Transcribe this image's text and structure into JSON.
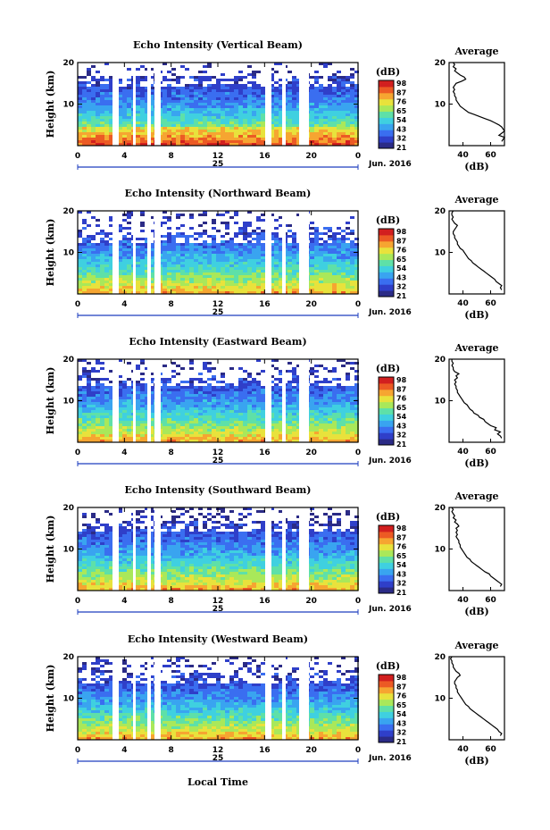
{
  "colors": {
    "colormap": [
      "#2b2b86",
      "#2f3fc9",
      "#3a6ef0",
      "#39a4f0",
      "#3fd0e0",
      "#5ee0a8",
      "#a9e85a",
      "#e8e23c",
      "#f6a531",
      "#ec5a24",
      "#d21f1f"
    ],
    "profile_line": "#000000",
    "background": "#ffffff"
  },
  "common": {
    "height_label": "Height (km)",
    "height_ticks": [
      "10",
      "20"
    ],
    "time_ticks": [
      "0",
      "4",
      "8",
      "12",
      "16",
      "20",
      "0"
    ],
    "day_label": "25",
    "month_label": "Jun. 2016",
    "colorbar_unit": "(dB)",
    "colorbar_ticks": [
      "98",
      "87",
      "76",
      "65",
      "54",
      "43",
      "32",
      "21"
    ],
    "average_title": "Average",
    "average_xlabel": "(dB)",
    "average_xticks": [
      "40",
      "60"
    ],
    "average_yticks": [
      "10",
      "20"
    ],
    "local_time_label": "Local Time"
  },
  "chart_data": [
    {
      "type": "heatmap",
      "title": "Echo Intensity (Vertical Beam)",
      "xlabel": "",
      "ylabel": "Height (km)",
      "xlim": [
        0,
        24
      ],
      "ylim": [
        0,
        20
      ],
      "zlim": [
        21,
        98
      ],
      "zunit": "dB",
      "missing_time_intervals": [
        [
          3.2,
          3.8
        ],
        [
          5.2,
          5.5
        ],
        [
          6.1,
          6.4
        ],
        [
          6.8,
          7.2
        ],
        [
          16.0,
          16.4
        ],
        [
          17.8,
          18.4
        ],
        [
          19.8,
          20.5
        ]
      ],
      "average_profile": {
        "xlim": [
          30,
          70
        ],
        "height": [
          1,
          1.5,
          2,
          2.5,
          3,
          3.5,
          4,
          4.5,
          5,
          5.5,
          6,
          6.5,
          7,
          7.5,
          8,
          8.5,
          9,
          9.5,
          10,
          10.5,
          11,
          11.5,
          12,
          12.5,
          13,
          13.5,
          14,
          14.5,
          15,
          15.5,
          16,
          16.5,
          17,
          17.5,
          18,
          18.5,
          19,
          19.5,
          20
        ],
        "dB": [
          68,
          69,
          70,
          66,
          68,
          70,
          69,
          68,
          66,
          63,
          60,
          56,
          52,
          48,
          44,
          42,
          40,
          38,
          37,
          36,
          35,
          35,
          34,
          34,
          33,
          34,
          33,
          34,
          35,
          39,
          42,
          41,
          38,
          36,
          34,
          35,
          33,
          34,
          33
        ]
      }
    },
    {
      "type": "heatmap",
      "title": "Echo Intensity (Northward Beam)",
      "xlabel": "",
      "ylabel": "Height (km)",
      "xlim": [
        0,
        24
      ],
      "ylim": [
        0,
        20
      ],
      "zlim": [
        21,
        98
      ],
      "zunit": "dB",
      "missing_time_intervals": [
        [
          3.2,
          3.8
        ],
        [
          5.2,
          5.5
        ],
        [
          6.1,
          6.4
        ],
        [
          6.8,
          7.2
        ],
        [
          16.0,
          16.4
        ],
        [
          17.8,
          18.4
        ],
        [
          19.8,
          20.5
        ]
      ],
      "average_profile": {
        "xlim": [
          30,
          70
        ],
        "height": [
          1,
          1.5,
          2,
          2.5,
          3,
          3.5,
          4,
          4.5,
          5,
          5.5,
          6,
          6.5,
          7,
          7.5,
          8,
          8.5,
          9,
          9.5,
          10,
          10.5,
          11,
          11.5,
          12,
          12.5,
          13,
          13.5,
          14,
          14.5,
          15,
          15.5,
          16,
          16.5,
          17,
          17.5,
          18,
          18.5,
          19,
          19.5,
          20
        ],
        "dB": [
          68,
          67,
          68,
          66,
          64,
          63,
          61,
          59,
          57,
          55,
          53,
          51,
          49,
          47,
          46,
          44,
          43,
          42,
          41,
          40,
          38,
          37,
          36,
          36,
          35,
          34,
          34,
          33,
          33,
          34,
          35,
          36,
          34,
          33,
          32,
          33,
          32,
          32,
          33
        ]
      }
    },
    {
      "type": "heatmap",
      "title": "Echo Intensity (Eastward Beam)",
      "xlabel": "",
      "ylabel": "Height (km)",
      "xlim": [
        0,
        24
      ],
      "ylim": [
        0,
        20
      ],
      "zlim": [
        21,
        98
      ],
      "zunit": "dB",
      "missing_time_intervals": [
        [
          3.2,
          3.8
        ],
        [
          5.2,
          5.5
        ],
        [
          6.1,
          6.4
        ],
        [
          6.8,
          7.2
        ],
        [
          16.0,
          16.4
        ],
        [
          17.8,
          18.4
        ],
        [
          19.8,
          20.5
        ]
      ],
      "average_profile": {
        "xlim": [
          30,
          70
        ],
        "height": [
          1,
          1.5,
          2,
          2.5,
          3,
          3.5,
          4,
          4.5,
          5,
          5.5,
          6,
          6.5,
          7,
          7.5,
          8,
          8.5,
          9,
          9.5,
          10,
          10.5,
          11,
          11.5,
          12,
          12.5,
          13,
          13.5,
          14,
          14.5,
          15,
          15.5,
          16,
          16.5,
          17,
          17.5,
          18,
          18.5,
          19,
          19.5,
          20
        ],
        "dB": [
          68,
          67,
          65,
          67,
          63,
          64,
          60,
          58,
          56,
          55,
          52,
          51,
          48,
          47,
          45,
          44,
          43,
          41,
          40,
          39,
          38,
          37,
          36,
          36,
          35,
          35,
          34,
          35,
          34,
          36,
          35,
          37,
          34,
          33,
          33,
          32,
          33,
          32,
          32
        ]
      }
    },
    {
      "type": "heatmap",
      "title": "Echo Intensity (Southward Beam)",
      "xlabel": "",
      "ylabel": "Height (km)",
      "xlim": [
        0,
        24
      ],
      "ylim": [
        0,
        20
      ],
      "zlim": [
        21,
        98
      ],
      "zunit": "dB",
      "missing_time_intervals": [
        [
          3.2,
          3.8
        ],
        [
          5.2,
          5.5
        ],
        [
          6.1,
          6.4
        ],
        [
          6.8,
          7.2
        ],
        [
          16.0,
          16.4
        ],
        [
          17.8,
          18.4
        ],
        [
          19.8,
          20.5
        ]
      ],
      "average_profile": {
        "xlim": [
          30,
          70
        ],
        "height": [
          1,
          1.5,
          2,
          2.5,
          3,
          3.5,
          4,
          4.5,
          5,
          5.5,
          6,
          6.5,
          7,
          7.5,
          8,
          8.5,
          9,
          9.5,
          10,
          10.5,
          11,
          11.5,
          12,
          12.5,
          13,
          13.5,
          14,
          14.5,
          15,
          15.5,
          16,
          16.5,
          17,
          17.5,
          18,
          18.5,
          19,
          19.5,
          20
        ],
        "dB": [
          67,
          68,
          66,
          64,
          62,
          60,
          59,
          56,
          54,
          52,
          50,
          48,
          46,
          45,
          43,
          42,
          41,
          40,
          39,
          38,
          38,
          37,
          37,
          36,
          35,
          36,
          35,
          36,
          35,
          37,
          36,
          34,
          35,
          33,
          34,
          33,
          32,
          33,
          32
        ]
      }
    },
    {
      "type": "heatmap",
      "title": "Echo Intensity (Westward Beam)",
      "xlabel": "Local Time",
      "ylabel": "Height (km)",
      "xlim": [
        0,
        24
      ],
      "ylim": [
        0,
        20
      ],
      "zlim": [
        21,
        98
      ],
      "zunit": "dB",
      "missing_time_intervals": [
        [
          3.2,
          3.8
        ],
        [
          5.2,
          5.5
        ],
        [
          6.1,
          6.4
        ],
        [
          6.8,
          7.2
        ],
        [
          16.0,
          16.4
        ],
        [
          17.8,
          18.4
        ],
        [
          19.8,
          20.5
        ]
      ],
      "average_profile": {
        "xlim": [
          30,
          70
        ],
        "height": [
          1,
          1.5,
          2,
          2.5,
          3,
          3.5,
          4,
          4.5,
          5,
          5.5,
          6,
          6.5,
          7,
          7.5,
          8,
          8.5,
          9,
          9.5,
          10,
          10.5,
          11,
          11.5,
          12,
          12.5,
          13,
          13.5,
          14,
          14.5,
          15,
          15.5,
          16,
          16.5,
          17,
          17.5,
          18,
          18.5,
          19,
          19.5,
          20
        ],
        "dB": [
          67,
          68,
          66,
          65,
          63,
          61,
          59,
          57,
          55,
          53,
          51,
          49,
          47,
          45,
          44,
          42,
          41,
          40,
          39,
          38,
          37,
          36,
          36,
          35,
          35,
          34,
          34,
          35,
          36,
          38,
          37,
          35,
          34,
          33,
          33,
          32,
          32,
          31,
          32
        ]
      }
    }
  ]
}
